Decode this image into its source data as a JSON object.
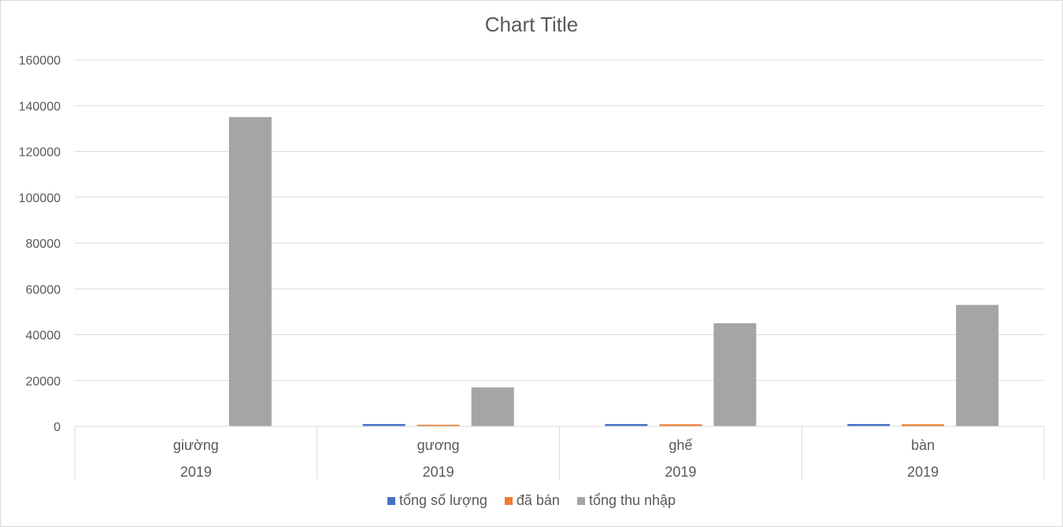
{
  "chart_data": {
    "type": "bar",
    "title": "Chart Title",
    "categories": [
      "giường",
      "gương",
      "ghế",
      "bàn"
    ],
    "category_group_labels": [
      "2019",
      "2019",
      "2019",
      "2019"
    ],
    "series": [
      {
        "name": "tổng số lượng",
        "color": "#4472c4",
        "values": [
          0,
          1000,
          1000,
          1000
        ]
      },
      {
        "name": "đã bán",
        "color": "#ed7d31",
        "values": [
          0,
          600,
          900,
          900
        ]
      },
      {
        "name": "tổng thu nhập",
        "color": "#a5a5a5",
        "values": [
          135000,
          17000,
          45000,
          53000
        ]
      }
    ],
    "ylim": [
      0,
      160000
    ],
    "y_ticks": [
      "0",
      "20000",
      "40000",
      "60000",
      "80000",
      "100000",
      "120000",
      "140000",
      "160000"
    ],
    "grid": true,
    "legend_position": "bottom"
  }
}
